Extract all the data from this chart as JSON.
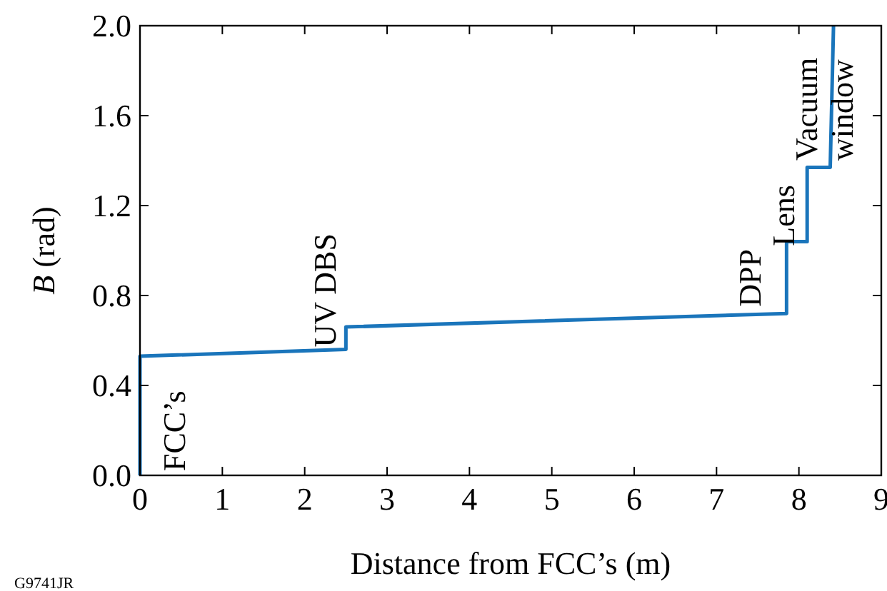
{
  "chart_data": {
    "type": "line",
    "xlabel": "Distance from FCC’s (m)",
    "ylabel": "B (rad)",
    "x": [
      0,
      0,
      2.5,
      2.5,
      7.85,
      7.85,
      8.1,
      8.1,
      8.38,
      8.42
    ],
    "series": [
      {
        "color": "#1a75bb",
        "values": [
          0,
          0.53,
          0.56,
          0.66,
          0.72,
          1.04,
          1.04,
          1.37,
          1.37,
          2.0
        ]
      }
    ],
    "xlim": [
      0,
      9
    ],
    "ylim": [
      0,
      2
    ],
    "xticks": [
      0,
      1,
      2,
      3,
      4,
      5,
      6,
      7,
      8,
      9
    ],
    "yticks": [
      {
        "value": 0,
        "label": "0.0"
      },
      {
        "value": 0.4,
        "label": "0.4"
      },
      {
        "value": 0.8,
        "label": "0.8"
      },
      {
        "value": 1.2,
        "label": "1.2"
      },
      {
        "value": 1.6,
        "label": "1.6"
      },
      {
        "value": 2,
        "label": "2.0"
      }
    ],
    "grid": false,
    "marker": "none",
    "line_style": "solid",
    "annotations": [
      "FCC’s",
      {
        "text": "UV DBS",
        "x": 2.24,
        "y": 0.57
      },
      {
        "text": "DPP",
        "x": 7.4,
        "y": 0.75
      },
      {
        "text": "Lens",
        "x": 7.8,
        "y": 1.02
      },
      {
        "text": "Vacuum\nwindow",
        "x": 8.3,
        "y": 1.4
      },
      "G9741JR"
    ]
  }
}
